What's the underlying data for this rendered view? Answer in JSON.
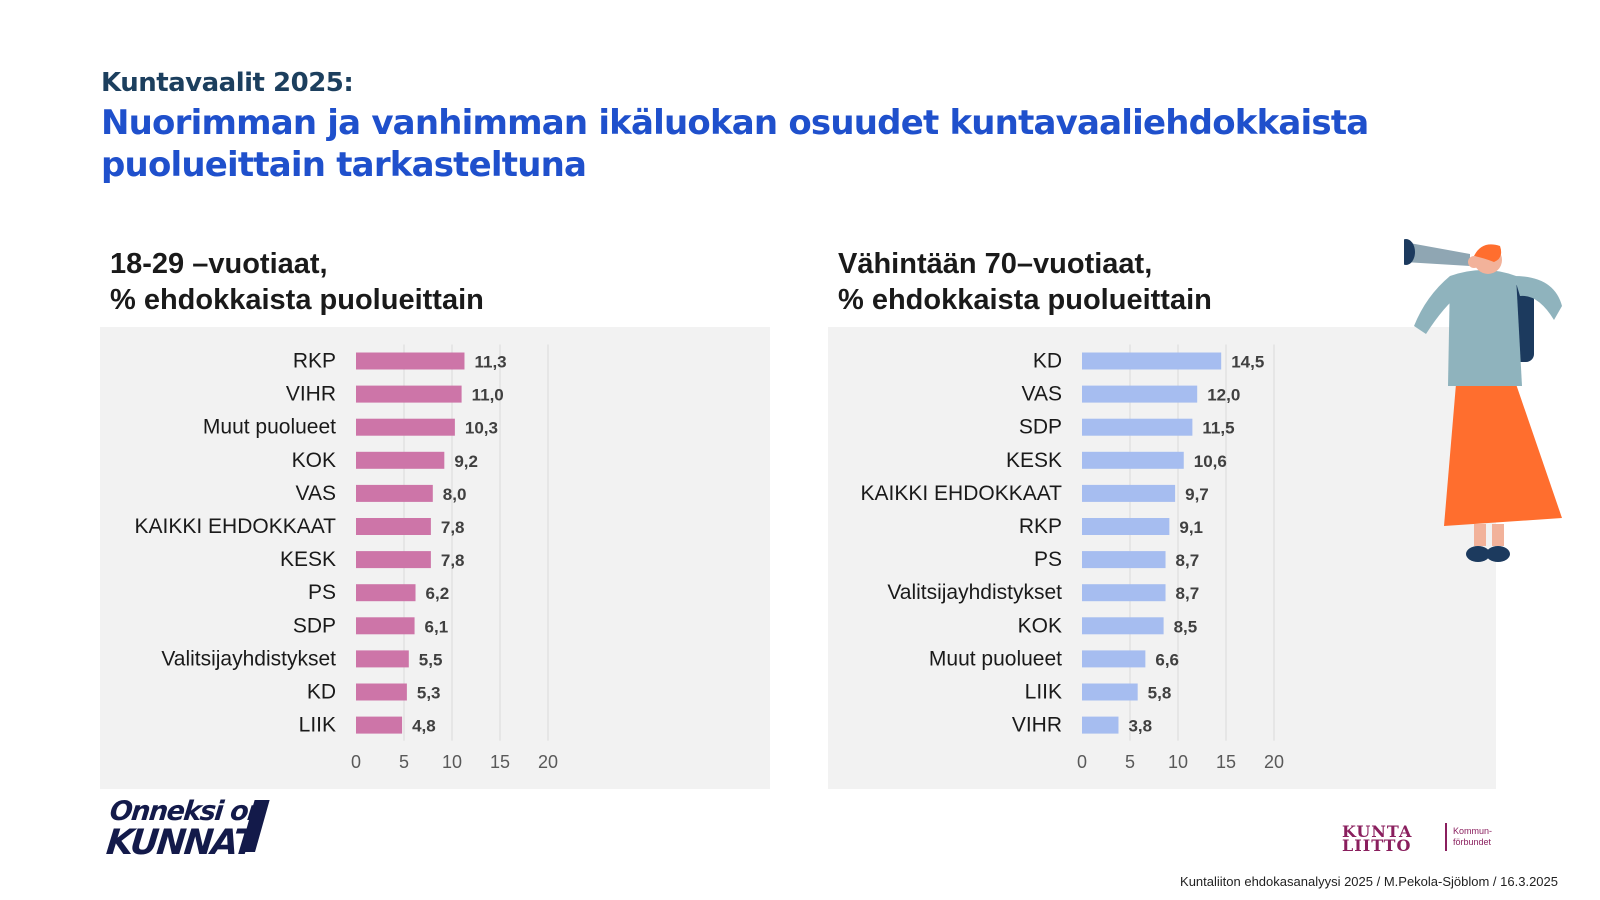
{
  "header": {
    "kicker": "Kuntavaalit 2025:",
    "title": "Nuorimman ja vanhimman ikäluokan osuudet kuntavaaliehdokkaista puolueittain tarkasteltuna"
  },
  "chart_data": [
    {
      "type": "bar",
      "orientation": "horizontal",
      "title_lines": [
        "18-29 –vuotiaat,",
        "% ehdokkaista puolueittain"
      ],
      "categories": [
        "RKP",
        "VIHR",
        "Muut puolueet",
        "KOK",
        "VAS",
        "KAIKKI EHDOKKAAT",
        "KESK",
        "PS",
        "SDP",
        "Valitsijayhdistykset",
        "KD",
        "LIIK"
      ],
      "values": [
        11.3,
        11.0,
        10.3,
        9.2,
        8.0,
        7.8,
        7.8,
        6.2,
        6.1,
        5.5,
        5.3,
        4.8
      ],
      "value_labels": [
        "11,3",
        "11,0",
        "10,3",
        "9,2",
        "8,0",
        "7,8",
        "7,8",
        "6,2",
        "6,1",
        "5,5",
        "5,3",
        "4,8"
      ],
      "xlim": [
        0,
        20
      ],
      "xticks": [
        0,
        5,
        10,
        15,
        20
      ],
      "xtick_labels": [
        "0",
        "5",
        "10",
        "15",
        "20"
      ],
      "grid": true,
      "color": "#cd75a8"
    },
    {
      "type": "bar",
      "orientation": "horizontal",
      "title_lines": [
        "Vähintään 70–vuotiaat,",
        "% ehdokkaista puolueittain"
      ],
      "categories": [
        "KD",
        "VAS",
        "SDP",
        "KESK",
        "KAIKKI EHDOKKAAT",
        "RKP",
        "PS",
        "Valitsijayhdistykset",
        "KOK",
        "Muut puolueet",
        "LIIK",
        "VIHR"
      ],
      "values": [
        14.5,
        12.0,
        11.5,
        10.6,
        9.7,
        9.1,
        8.7,
        8.7,
        8.5,
        6.6,
        5.8,
        3.8
      ],
      "value_labels": [
        "14,5",
        "12,0",
        "11,5",
        "10,6",
        "9,7",
        "9,1",
        "8,7",
        "8,7",
        "8,5",
        "6,6",
        "5,8",
        "3,8"
      ],
      "xlim": [
        0,
        20
      ],
      "xticks": [
        0,
        5,
        10,
        15,
        20
      ],
      "xtick_labels": [
        "0",
        "5",
        "10",
        "15",
        "20"
      ],
      "grid": true,
      "color": "#a6bdf0"
    }
  ],
  "branding": {
    "campaign_line1": "Onneksi on",
    "campaign_line2": "KUNNAT",
    "org_word1": "KUNTA",
    "org_word2": "LIITTO",
    "org_sub1": "Kommun-",
    "org_sub2": "förbundet"
  },
  "footer": {
    "source": "Kuntaliiton ehdokasanalyysi 2025 / M.Pekola-Sjöblom / 16.3.2025"
  },
  "illustration": {
    "name": "person-with-telescope",
    "colors": {
      "top": "#8fb3bd",
      "skirt": "#ff6e2e",
      "telescope": "#8fa6b3",
      "hair": "#ff6e2e",
      "shoes": "#1c3a5e"
    }
  }
}
